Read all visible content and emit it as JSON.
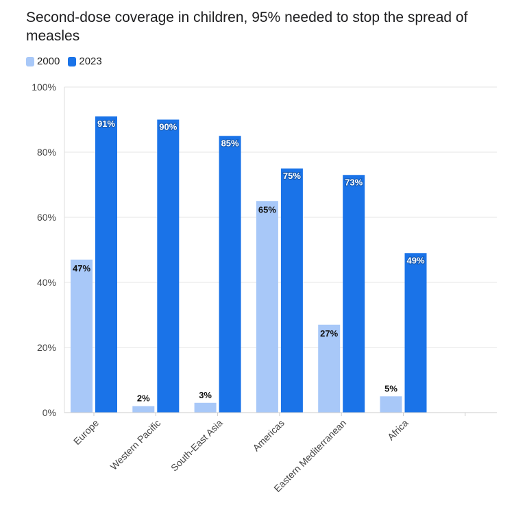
{
  "chart_data": {
    "type": "bar",
    "title": "Second-dose coverage in children, 95% needed to stop the spread of measles",
    "categories": [
      "Europe",
      "Western Pacific",
      "South-East Asia",
      "Americas",
      "Eastern Mediterranean",
      "Africa"
    ],
    "series": [
      {
        "name": "2000",
        "color": "#a8c8f8",
        "values": [
          47,
          2,
          3,
          65,
          27,
          5
        ]
      },
      {
        "name": "2023",
        "color": "#1a73e8",
        "values": [
          91,
          90,
          85,
          75,
          73,
          49
        ]
      }
    ],
    "ylim": [
      0,
      100
    ],
    "yticks": [
      "0%",
      "20%",
      "40%",
      "60%",
      "80%",
      "100%"
    ],
    "ytick_values": [
      0,
      20,
      40,
      60,
      80,
      100
    ],
    "value_suffix": "%",
    "legend_position": "top-left",
    "grid": true
  }
}
